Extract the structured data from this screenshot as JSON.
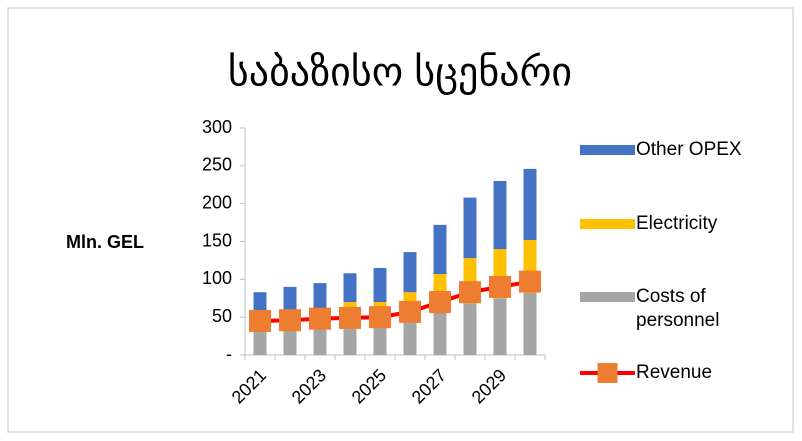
{
  "chart_data": {
    "type": "bar",
    "title": "საბაზისო სცენარი",
    "ylabel": "Mln. GEL",
    "categories": [
      "2021",
      null,
      "2023",
      null,
      "2025",
      null,
      "2027",
      null,
      "2029",
      null
    ],
    "series": [
      {
        "name": "Costs of personnel",
        "color": "#a5a5a5",
        "values": [
          35,
          36,
          37,
          38,
          40,
          48,
          58,
          68,
          75,
          82
        ]
      },
      {
        "name": "Electricity",
        "color": "#ffc000",
        "values": [
          15,
          17,
          18,
          32,
          30,
          35,
          49,
          60,
          65,
          70
        ]
      },
      {
        "name": "Other OPEX",
        "color": "#4472c4",
        "values": [
          33,
          37,
          40,
          38,
          45,
          53,
          65,
          80,
          90,
          94
        ]
      },
      {
        "name": "Revenue",
        "type": "line",
        "color": "#ff0000",
        "marker_color": "#ed7d31",
        "values": [
          45,
          46,
          48,
          49,
          50,
          57,
          70,
          83,
          90,
          97
        ]
      }
    ],
    "ylim": [
      0,
      300
    ],
    "yticks": [
      {
        "value": 0,
        "label": "-"
      },
      50,
      100,
      150,
      200,
      250,
      300
    ],
    "grid": false,
    "legend": "right"
  }
}
